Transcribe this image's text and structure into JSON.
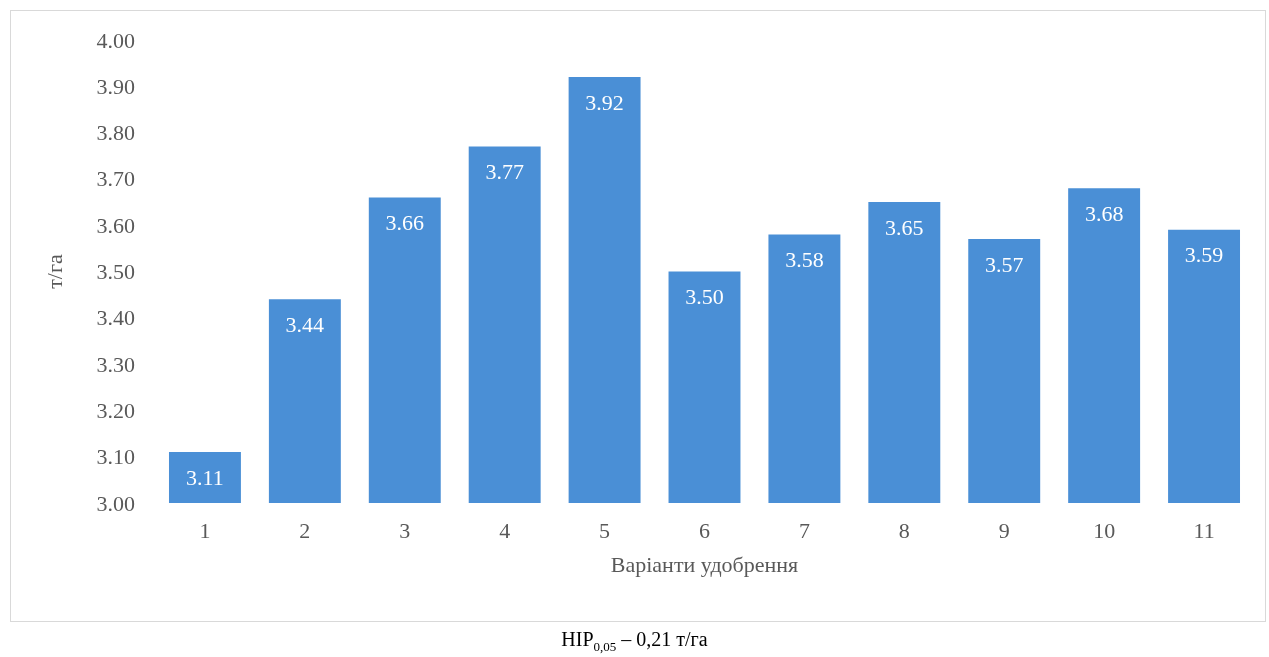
{
  "chart_data": {
    "type": "bar",
    "xlabel": "Варіанти удобрення",
    "ylabel": "т/га",
    "categories": [
      "1",
      "2",
      "3",
      "4",
      "5",
      "6",
      "7",
      "8",
      "9",
      "10",
      "11"
    ],
    "values": [
      3.11,
      3.44,
      3.66,
      3.77,
      3.92,
      3.5,
      3.58,
      3.65,
      3.57,
      3.68,
      3.59
    ],
    "value_labels": [
      "3.11",
      "3.44",
      "3.66",
      "3.77",
      "3.92",
      "3.50",
      "3.58",
      "3.65",
      "3.57",
      "3.68",
      "3.59"
    ],
    "color": "#4a8fd6",
    "ylim": [
      3,
      4
    ],
    "yticks": [
      {
        "value": 3,
        "label": "3.00"
      },
      {
        "value": 3.1,
        "label": "3.10"
      },
      {
        "value": 3.2,
        "label": "3.20"
      },
      {
        "value": 3.3,
        "label": "3.30"
      },
      {
        "value": 3.4,
        "label": "3.40"
      },
      {
        "value": 3.5,
        "label": "3.50"
      },
      {
        "value": 3.6,
        "label": "3.60"
      },
      {
        "value": 3.7,
        "label": "3.70"
      },
      {
        "value": 3.8,
        "label": "3.80"
      },
      {
        "value": 3.9,
        "label": "3.90"
      },
      {
        "value": 4,
        "label": "4.00"
      }
    ],
    "annotations": [
      "НІР$_{0,05}$ – 0,21 т/га"
    ]
  }
}
